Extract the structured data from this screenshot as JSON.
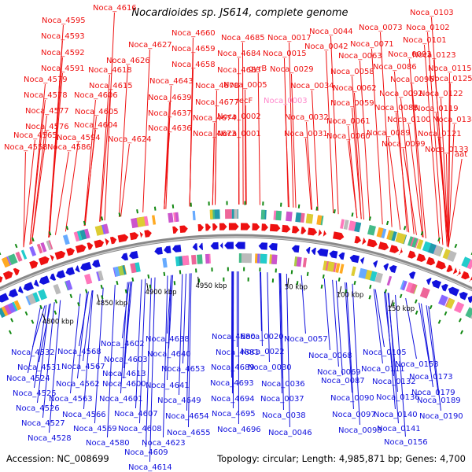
{
  "title": "Nocardioides sp. JS614, complete genome",
  "accession_text": "Accession: NC_008699",
  "topology_text": "Topology: circular; Length: 4,985,871 bp; Genes: 4,700",
  "colors": {
    "top_strand": "#ee1111",
    "bottom_strand": "#1111dd",
    "highlight_label": "#ff88cc",
    "backbone": "#888888",
    "tick_dot": "#118811"
  },
  "kbp_ticks": [
    "4800 kbp",
    "4850 kbp",
    "4900 kbp",
    "4950 kbp",
    "50 kbp",
    "100 kbp",
    "150 kbp"
  ],
  "top_labels": [
    {
      "text": "Noca_4616"
    },
    {
      "text": "Noca_4595"
    },
    {
      "text": "Noca_4593"
    },
    {
      "text": "Noca_4592"
    },
    {
      "text": "Noca_4591"
    },
    {
      "text": "Noca_4579"
    },
    {
      "text": "Noca_4578"
    },
    {
      "text": "Noca_4577"
    },
    {
      "text": "Noca_4576"
    },
    {
      "text": "Noca_4565"
    },
    {
      "text": "Noca_4558"
    },
    {
      "text": "Noca_4586"
    },
    {
      "text": "Noca_4594"
    },
    {
      "text": "Noca_4604"
    },
    {
      "text": "Noca_4605"
    },
    {
      "text": "Noca_4606"
    },
    {
      "text": "Noca_4615"
    },
    {
      "text": "Noca_4618"
    },
    {
      "text": "Noca_4626"
    },
    {
      "text": "Noca_4627"
    },
    {
      "text": "Noca_4624"
    },
    {
      "text": "Noca_4636"
    },
    {
      "text": "Noca_4637"
    },
    {
      "text": "Noca_4639"
    },
    {
      "text": "Noca_4643"
    },
    {
      "text": "Noca_4658"
    },
    {
      "text": "Noca_4659"
    },
    {
      "text": "Noca_4660"
    },
    {
      "text": "Noca_4673"
    },
    {
      "text": "Noca_4674"
    },
    {
      "text": "Noca_4677"
    },
    {
      "text": "Noca_4678"
    },
    {
      "text": "Noca_4683"
    },
    {
      "text": "Noca_4684"
    },
    {
      "text": "Noca_4685"
    },
    {
      "text": "Noca_0001"
    },
    {
      "text": "Noca_0002"
    },
    {
      "text": "Noca_0005"
    },
    {
      "text": "recF"
    },
    {
      "text": "gyrB"
    },
    {
      "text": "Noca_0015"
    },
    {
      "text": "Noca_0017"
    },
    {
      "text": "Noca_0003",
      "highlight": true
    },
    {
      "text": "Noca_0029"
    },
    {
      "text": "Noca_0031"
    },
    {
      "text": "Noca_0032"
    },
    {
      "text": "Noca_0034"
    },
    {
      "text": "Noca_0042"
    },
    {
      "text": "Noca_0044"
    },
    {
      "text": "Noca_0058"
    },
    {
      "text": "Noca_0059"
    },
    {
      "text": "Noca_0060"
    },
    {
      "text": "Noca_0061"
    },
    {
      "text": "Noca_0062"
    },
    {
      "text": "Noca_0063"
    },
    {
      "text": "Noca_0071"
    },
    {
      "text": "Noca_0073"
    },
    {
      "text": "Noca_0086"
    },
    {
      "text": "Noca_0088"
    },
    {
      "text": "Noca_0089"
    },
    {
      "text": "Noca_0092"
    },
    {
      "text": "Noca_0093"
    },
    {
      "text": "Noca_0096"
    },
    {
      "text": "Noca_0099"
    },
    {
      "text": "Noca_0100"
    },
    {
      "text": "Noca_0101"
    },
    {
      "text": "Noca_0102"
    },
    {
      "text": "Noca_0103"
    },
    {
      "text": "Noca_0115"
    },
    {
      "text": "Noca_0119"
    },
    {
      "text": "Noca_0121"
    },
    {
      "text": "Noca_0122"
    },
    {
      "text": "Noca_0123"
    },
    {
      "text": "Noca_0125"
    },
    {
      "text": "Noca_0133"
    },
    {
      "text": "Noca_0134"
    },
    {
      "text": "aat"
    }
  ],
  "bottom_labels": [
    {
      "text": "Noca_4532"
    },
    {
      "text": "Noca_4531"
    },
    {
      "text": "Noca_4524"
    },
    {
      "text": "Noca_4525"
    },
    {
      "text": "Noca_4526"
    },
    {
      "text": "Noca_4527"
    },
    {
      "text": "Noca_4528"
    },
    {
      "text": "Noca_4568"
    },
    {
      "text": "Noca_4567"
    },
    {
      "text": "Noca_4562"
    },
    {
      "text": "Noca_4563"
    },
    {
      "text": "Noca_4566"
    },
    {
      "text": "Noca_4569"
    },
    {
      "text": "Noca_4580"
    },
    {
      "text": "Noca_4602"
    },
    {
      "text": "Noca_4603"
    },
    {
      "text": "Noca_4613"
    },
    {
      "text": "Noca_4600"
    },
    {
      "text": "Noca_4601"
    },
    {
      "text": "Noca_4607"
    },
    {
      "text": "Noca_4608"
    },
    {
      "text": "Noca_4609"
    },
    {
      "text": "Noca_4614"
    },
    {
      "text": "Noca_4623"
    },
    {
      "text": "Noca_4638"
    },
    {
      "text": "Noca_4640"
    },
    {
      "text": "Noca_4653"
    },
    {
      "text": "Noca_4641"
    },
    {
      "text": "Noca_4649"
    },
    {
      "text": "Noca_4654"
    },
    {
      "text": "Noca_4655"
    },
    {
      "text": "Noca_4680"
    },
    {
      "text": "Noca_4681"
    },
    {
      "text": "Noca_4689"
    },
    {
      "text": "Noca_4693"
    },
    {
      "text": "Noca_4694"
    },
    {
      "text": "Noca_4695"
    },
    {
      "text": "Noca_4696"
    },
    {
      "text": "Noca_0020"
    },
    {
      "text": "Noca_0022"
    },
    {
      "text": "Noca_0030"
    },
    {
      "text": "Noca_0036"
    },
    {
      "text": "Noca_0037"
    },
    {
      "text": "Noca_0038"
    },
    {
      "text": "Noca_0046"
    },
    {
      "text": "Noca_0057"
    },
    {
      "text": "Noca_0068"
    },
    {
      "text": "Noca_0069"
    },
    {
      "text": "Noca_0087"
    },
    {
      "text": "Noca_0090"
    },
    {
      "text": "Noca_0097"
    },
    {
      "text": "Noca_0098"
    },
    {
      "text": "Noca_0105"
    },
    {
      "text": "Noca_0111"
    },
    {
      "text": "Noca_0132"
    },
    {
      "text": "Noca_0136"
    },
    {
      "text": "Noca_0140"
    },
    {
      "text": "Noca_0141"
    },
    {
      "text": "Noca_0156"
    },
    {
      "text": "Noca_0153"
    },
    {
      "text": "Noca_0173"
    },
    {
      "text": "Noca_0179"
    },
    {
      "text": "Noca_0189"
    },
    {
      "text": "Noca_0190"
    }
  ]
}
